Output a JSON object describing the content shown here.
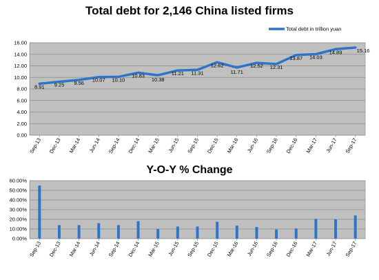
{
  "chart_data": [
    {
      "type": "line",
      "title": "Total debt for 2,146 China listed firms",
      "categories": [
        "Sep-13",
        "Dec-13",
        "Mar-14",
        "Jun-14",
        "Sep-14",
        "Dec-14",
        "Mar-15",
        "Jun-15",
        "Sep-15",
        "Dec-15",
        "Mar-16",
        "Jun-16",
        "Sep-16",
        "Dec-16",
        "Mar-17",
        "Jun-17",
        "Sep-17"
      ],
      "series": [
        {
          "name": "Total debt in trillion yuan",
          "values": [
            8.91,
            9.25,
            9.56,
            10.07,
            10.1,
            10.83,
            10.38,
            11.21,
            11.31,
            12.62,
            11.71,
            12.52,
            12.31,
            13.87,
            14.03,
            14.89,
            15.16
          ],
          "labels": [
            "8.91",
            "9.25",
            "9.56",
            "10.07",
            "10.10",
            "10.83",
            "10.38",
            "11.21",
            "11.31",
            "12.62",
            "11.71",
            "12.52",
            "12.31",
            "13.87",
            "14.03",
            "14.89",
            "15.16"
          ]
        }
      ],
      "ylim": [
        0,
        16
      ],
      "yticks": [
        "0.00",
        "2.00",
        "4.00",
        "6.00",
        "8.00",
        "10.00",
        "12.00",
        "14.00",
        "16.00"
      ],
      "grid": true,
      "legend": "top-right",
      "colors": {
        "line": "#2e75c8",
        "plot_bg": "#c0c0c0",
        "grid": "#8c8c8c"
      }
    },
    {
      "type": "bar",
      "title": "Y-O-Y % Change",
      "categories": [
        "Sep-13",
        "Dec-13",
        "Mar-14",
        "Jun-14",
        "Sep-14",
        "Dec-14",
        "Mar-15",
        "Jun-15",
        "Sep-15",
        "Dec-15",
        "Mar-16",
        "Jun-16",
        "Sep-16",
        "Dec-16",
        "Mar-17",
        "Jun-17",
        "Sep-17"
      ],
      "values": [
        55,
        14,
        14,
        16,
        14,
        18,
        10,
        12.5,
        12.5,
        17.5,
        13.5,
        12,
        9.5,
        10.5,
        20.5,
        20,
        24
      ],
      "ylim": [
        0,
        60
      ],
      "yticks": [
        "0.00%",
        "10.00%",
        "20.00%",
        "30.00%",
        "40.00%",
        "50.00%",
        "60.00%"
      ],
      "grid": true,
      "colors": {
        "bar": "#2e75c8",
        "plot_bg": "#c0c0c0",
        "grid": "#8c8c8c"
      }
    }
  ]
}
